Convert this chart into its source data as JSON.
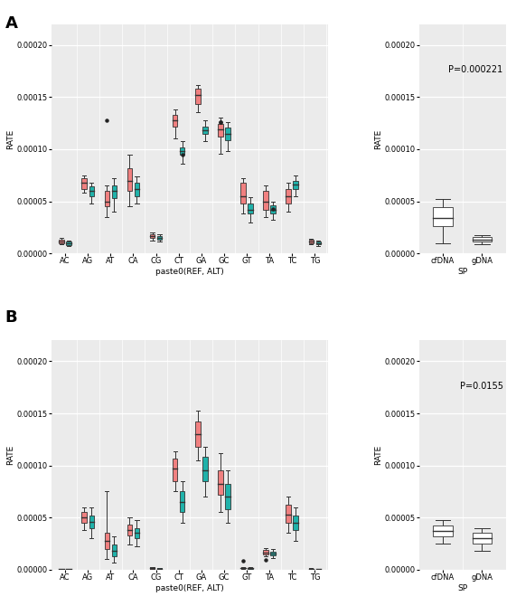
{
  "panel_A_label": "A",
  "panel_B_label": "B",
  "categories": [
    "AC",
    "AG",
    "AT",
    "CA",
    "CG",
    "CT",
    "GA",
    "GC",
    "GT",
    "TA",
    "TC",
    "TG"
  ],
  "color_cfDNA": "#F08080",
  "color_gDNA": "#20B2AA",
  "bg_color": "#EBEBEB",
  "ylabel": "RATE",
  "xlabel_main": "paste0(REF, ALT)",
  "xlabel_sp": "SP",
  "pval_A": "P=0.000221",
  "pval_B": "P=0.0155",
  "ylim": [
    0,
    0.00022
  ],
  "yticks": [
    0.0,
    5e-05,
    0.0001,
    0.00015,
    0.0002
  ],
  "yticklabels": [
    "0.00000",
    "0.00005",
    "0.00010",
    "0.00015",
    "0.00020"
  ],
  "A_cf": {
    "AC": {
      "q1": 9.5e-06,
      "med": 1.15e-05,
      "q3": 1.3e-05,
      "whislo": 8.5e-06,
      "whishi": 1.45e-05,
      "fliers": []
    },
    "AG": {
      "q1": 6.2e-05,
      "med": 6.8e-05,
      "q3": 7.2e-05,
      "whislo": 5.8e-05,
      "whishi": 7.5e-05,
      "fliers": []
    },
    "AT": {
      "q1": 4.5e-05,
      "med": 5e-05,
      "q3": 6e-05,
      "whislo": 3.5e-05,
      "whishi": 6.5e-05,
      "fliers": [
        0.000128
      ]
    },
    "CA": {
      "q1": 6e-05,
      "med": 7e-05,
      "q3": 8.2e-05,
      "whislo": 4.5e-05,
      "whishi": 9.5e-05,
      "fliers": []
    },
    "CG": {
      "q1": 1.45e-05,
      "med": 1.65e-05,
      "q3": 1.85e-05,
      "whislo": 1.25e-05,
      "whishi": 2e-05,
      "fliers": []
    },
    "CT": {
      "q1": 0.000122,
      "med": 0.000128,
      "q3": 0.000133,
      "whislo": 0.00011,
      "whishi": 0.000138,
      "fliers": []
    },
    "GA": {
      "q1": 0.000143,
      "med": 0.000152,
      "q3": 0.000158,
      "whislo": 0.000136,
      "whishi": 0.000162,
      "fliers": []
    },
    "GC": {
      "q1": 0.000112,
      "med": 0.000119,
      "q3": 0.000124,
      "whislo": 9.6e-05,
      "whishi": 0.00013,
      "fliers": [
        0.000126,
        0.000126
      ]
    },
    "GT": {
      "q1": 4.8e-05,
      "med": 5.5e-05,
      "q3": 6.8e-05,
      "whislo": 3.8e-05,
      "whishi": 7.2e-05,
      "fliers": []
    },
    "TA": {
      "q1": 4.2e-05,
      "med": 5e-05,
      "q3": 6e-05,
      "whislo": 3.5e-05,
      "whishi": 6.5e-05,
      "fliers": []
    },
    "TC": {
      "q1": 4.8e-05,
      "med": 5.5e-05,
      "q3": 6.2e-05,
      "whislo": 4e-05,
      "whishi": 6.8e-05,
      "fliers": []
    },
    "TG": {
      "q1": 9.5e-06,
      "med": 1.15e-05,
      "q3": 1.28e-05,
      "whislo": 8.5e-06,
      "whishi": 1.4e-05,
      "fliers": []
    }
  },
  "A_gd": {
    "AC": {
      "q1": 8e-06,
      "med": 9.5e-06,
      "q3": 1.1e-05,
      "whislo": 7e-06,
      "whishi": 1.2e-05,
      "fliers": []
    },
    "AG": {
      "q1": 5.5e-05,
      "med": 6e-05,
      "q3": 6.4e-05,
      "whislo": 4.8e-05,
      "whishi": 6.8e-05,
      "fliers": []
    },
    "AT": {
      "q1": 5.3e-05,
      "med": 6e-05,
      "q3": 6.5e-05,
      "whislo": 4e-05,
      "whishi": 7.2e-05,
      "fliers": []
    },
    "CA": {
      "q1": 5.5e-05,
      "med": 6.2e-05,
      "q3": 6.8e-05,
      "whislo": 4.8e-05,
      "whishi": 7.4e-05,
      "fliers": []
    },
    "CG": {
      "q1": 1.3e-05,
      "med": 1.48e-05,
      "q3": 1.65e-05,
      "whislo": 1.15e-05,
      "whishi": 1.8e-05,
      "fliers": []
    },
    "CT": {
      "q1": 9.5e-05,
      "med": 9.8e-05,
      "q3": 0.000102,
      "whislo": 8.6e-05,
      "whishi": 0.000108,
      "fliers": [
        9.5e-05
      ]
    },
    "GA": {
      "q1": 0.000115,
      "med": 0.000118,
      "q3": 0.000122,
      "whislo": 0.000108,
      "whishi": 0.000128,
      "fliers": []
    },
    "GC": {
      "q1": 0.000109,
      "med": 0.000115,
      "q3": 0.000121,
      "whislo": 9.8e-05,
      "whishi": 0.000126,
      "fliers": []
    },
    "GT": {
      "q1": 3.8e-05,
      "med": 4.2e-05,
      "q3": 4.8e-05,
      "whislo": 3e-05,
      "whishi": 5.4e-05,
      "fliers": []
    },
    "TA": {
      "q1": 3.8e-05,
      "med": 4.2e-05,
      "q3": 4.6e-05,
      "whislo": 3.2e-05,
      "whishi": 5e-05,
      "fliers": [
        4.3e-05
      ]
    },
    "TC": {
      "q1": 6.2e-05,
      "med": 6.6e-05,
      "q3": 7e-05,
      "whislo": 5.5e-05,
      "whishi": 7.5e-05,
      "fliers": []
    },
    "TG": {
      "q1": 8.5e-06,
      "med": 1e-05,
      "q3": 1.15e-05,
      "whislo": 7.5e-06,
      "whishi": 1.25e-05,
      "fliers": []
    }
  },
  "B_cf": {
    "AC": {
      "q1": 3e-07,
      "med": 6e-07,
      "q3": 9e-07,
      "whislo": 1e-07,
      "whishi": 1.1e-06,
      "fliers": []
    },
    "AG": {
      "q1": 4.5e-05,
      "med": 5e-05,
      "q3": 5.5e-05,
      "whislo": 3.8e-05,
      "whishi": 6e-05,
      "fliers": []
    },
    "AT": {
      "q1": 2e-05,
      "med": 2.8e-05,
      "q3": 3.5e-05,
      "whislo": 1e-05,
      "whishi": 7.5e-05,
      "fliers": []
    },
    "CA": {
      "q1": 3.3e-05,
      "med": 3.8e-05,
      "q3": 4.3e-05,
      "whislo": 2.4e-05,
      "whishi": 5e-05,
      "fliers": []
    },
    "CG": {
      "q1": 8e-07,
      "med": 1.2e-06,
      "q3": 1.65e-06,
      "whislo": 4e-07,
      "whishi": 2e-06,
      "fliers": []
    },
    "CT": {
      "q1": 8.5e-05,
      "med": 9.7e-05,
      "q3": 0.000107,
      "whislo": 7.5e-05,
      "whishi": 0.000114,
      "fliers": []
    },
    "GA": {
      "q1": 0.000118,
      "med": 0.00013,
      "q3": 0.000142,
      "whislo": 0.000105,
      "whishi": 0.000153,
      "fliers": []
    },
    "GC": {
      "q1": 7.2e-05,
      "med": 8.2e-05,
      "q3": 9.5e-05,
      "whislo": 5.5e-05,
      "whishi": 0.000112,
      "fliers": []
    },
    "GT": {
      "q1": 1.2e-06,
      "med": 1.55e-06,
      "q3": 1.9e-06,
      "whislo": 8e-07,
      "whishi": 2.2e-06,
      "fliers": [
        8.5e-06
      ]
    },
    "TA": {
      "q1": 1.45e-05,
      "med": 1.65e-05,
      "q3": 1.85e-05,
      "whislo": 1.25e-05,
      "whishi": 2.05e-05,
      "fliers": [
        9e-06
      ]
    },
    "TC": {
      "q1": 4.5e-05,
      "med": 5.3e-05,
      "q3": 6.2e-05,
      "whislo": 3.5e-05,
      "whishi": 7e-05,
      "fliers": []
    },
    "TG": {
      "q1": 4e-07,
      "med": 7e-07,
      "q3": 1.05e-06,
      "whislo": 1.5e-07,
      "whishi": 1.25e-06,
      "fliers": []
    }
  },
  "B_gd": {
    "AC": {
      "q1": 1.5e-07,
      "med": 3e-07,
      "q3": 5.5e-07,
      "whislo": 5e-08,
      "whishi": 7.5e-07,
      "fliers": []
    },
    "AG": {
      "q1": 4e-05,
      "med": 4.6e-05,
      "q3": 5.2e-05,
      "whislo": 3e-05,
      "whishi": 6e-05,
      "fliers": []
    },
    "AT": {
      "q1": 1.3e-05,
      "med": 1.8e-05,
      "q3": 2.4e-05,
      "whislo": 7e-06,
      "whishi": 3.2e-05,
      "fliers": []
    },
    "CA": {
      "q1": 3e-05,
      "med": 3.5e-05,
      "q3": 4e-05,
      "whislo": 2.2e-05,
      "whishi": 4.8e-05,
      "fliers": []
    },
    "CG": {
      "q1": 6e-07,
      "med": 9.5e-07,
      "q3": 1.3e-06,
      "whislo": 2.5e-07,
      "whishi": 1.58e-06,
      "fliers": []
    },
    "CT": {
      "q1": 5.5e-05,
      "med": 6.5e-05,
      "q3": 7.5e-05,
      "whislo": 4.5e-05,
      "whishi": 8.5e-05,
      "fliers": []
    },
    "GA": {
      "q1": 8.5e-05,
      "med": 9.5e-05,
      "q3": 0.000108,
      "whislo": 7e-05,
      "whishi": 0.000118,
      "fliers": []
    },
    "GC": {
      "q1": 5.8e-05,
      "med": 7e-05,
      "q3": 8.2e-05,
      "whislo": 4.5e-05,
      "whishi": 9.5e-05,
      "fliers": []
    },
    "GT": {
      "q1": 9.5e-07,
      "med": 1.35e-06,
      "q3": 1.75e-06,
      "whislo": 5.5e-07,
      "whishi": 2.15e-06,
      "fliers": []
    },
    "TA": {
      "q1": 1.35e-05,
      "med": 1.55e-05,
      "q3": 1.75e-05,
      "whislo": 1.15e-05,
      "whishi": 1.95e-05,
      "fliers": []
    },
    "TC": {
      "q1": 3.8e-05,
      "med": 4.5e-05,
      "q3": 5.2e-05,
      "whislo": 2.8e-05,
      "whishi": 6e-05,
      "fliers": []
    },
    "TG": {
      "q1": 3e-07,
      "med": 5.5e-07,
      "q3": 8.5e-07,
      "whislo": 1e-07,
      "whishi": 1.05e-06,
      "fliers": []
    }
  },
  "A_sp_cf": {
    "q1": 2.6e-05,
    "med": 3.4e-05,
    "q3": 4.4e-05,
    "whislo": 1e-05,
    "whishi": 5.2e-05,
    "fliers": []
  },
  "A_sp_gd": {
    "q1": 1.1e-05,
    "med": 1.35e-05,
    "q3": 1.6e-05,
    "whislo": 9e-06,
    "whishi": 1.75e-05,
    "fliers": []
  },
  "B_sp_cf": {
    "q1": 3.2e-05,
    "med": 3.7e-05,
    "q3": 4.2e-05,
    "whislo": 2.5e-05,
    "whishi": 4.8e-05,
    "fliers": []
  },
  "B_sp_gd": {
    "q1": 2.5e-05,
    "med": 3e-05,
    "q3": 3.5e-05,
    "whislo": 1.8e-05,
    "whishi": 4e-05,
    "fliers": []
  }
}
